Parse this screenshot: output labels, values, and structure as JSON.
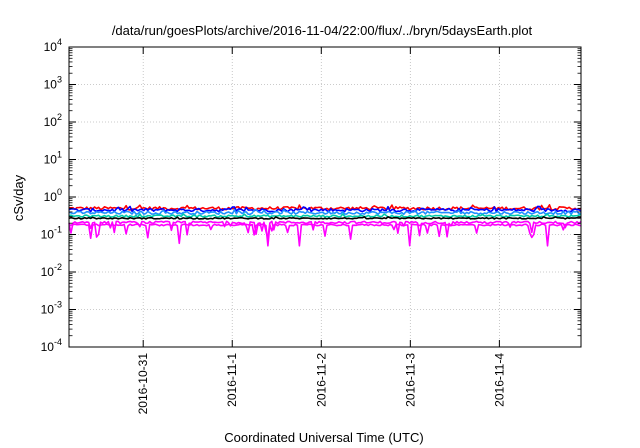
{
  "chart_data": {
    "type": "line",
    "title": "/data/run/goesPlots/archive/2016-11-04/22:00/flux/../bryn/5daysEarth.plot",
    "xlabel": "Coordinated Universal Time (UTC)",
    "ylabel": "cSv/day",
    "yscale": "log",
    "ylim": [
      0.0001,
      10000
    ],
    "xlim": [
      "2016-10-30T04:00",
      "2016-11-04T22:00"
    ],
    "grid": true,
    "x_ticks": [
      "2016-10-31",
      "2016-11-1",
      "2016-11-2",
      "2016-11-3",
      "2016-11-4"
    ],
    "y_ticks": [
      {
        "base": "10",
        "exp": "4"
      },
      {
        "base": "10",
        "exp": "3"
      },
      {
        "base": "10",
        "exp": "2"
      },
      {
        "base": "10",
        "exp": "1"
      },
      {
        "base": "10",
        "exp": "0"
      },
      {
        "base": "10",
        "exp": "-1"
      },
      {
        "base": "10",
        "exp": "-2"
      },
      {
        "base": "10",
        "exp": "-3"
      },
      {
        "base": "10",
        "exp": "-4"
      }
    ],
    "series": [
      {
        "color": "#ff0000",
        "level": 0.5,
        "spread": 0.1
      },
      {
        "color": "#0000ff",
        "level": 0.45,
        "spread": 0.1
      },
      {
        "color": "#1e90ff",
        "level": 0.38,
        "spread": 0.09
      },
      {
        "color": "#00ccaa",
        "level": 0.31,
        "spread": 0.06
      },
      {
        "color": "#000000",
        "level": 0.27,
        "spread": 0.04
      },
      {
        "color": "#ff00ff",
        "level": 0.21,
        "spread": 0.07,
        "dips": 0.09
      },
      {
        "color": "#ff00ff",
        "level": 0.18,
        "spread": 0.05,
        "dips": 0.11
      }
    ]
  }
}
